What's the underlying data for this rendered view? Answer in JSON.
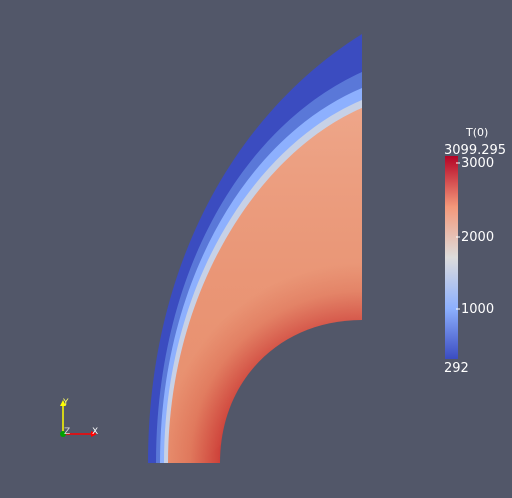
{
  "colorbar": {
    "title": "T(0)",
    "max_label": "3099.295",
    "min_label": "292",
    "range": [
      292,
      3099.295
    ],
    "ticks": [
      "3000",
      "2000",
      "1000"
    ],
    "colormap": [
      "#3b4cc0",
      "#8db0fe",
      "#dddcdc",
      "#f4987a",
      "#b40426"
    ]
  },
  "axes_triad": {
    "y_label": "Y",
    "z_label": "Z",
    "x_label": "X",
    "y_color": "#ffff00",
    "x_color": "#ff0000",
    "z_color": "#00a000"
  },
  "background_color": "#525769"
}
